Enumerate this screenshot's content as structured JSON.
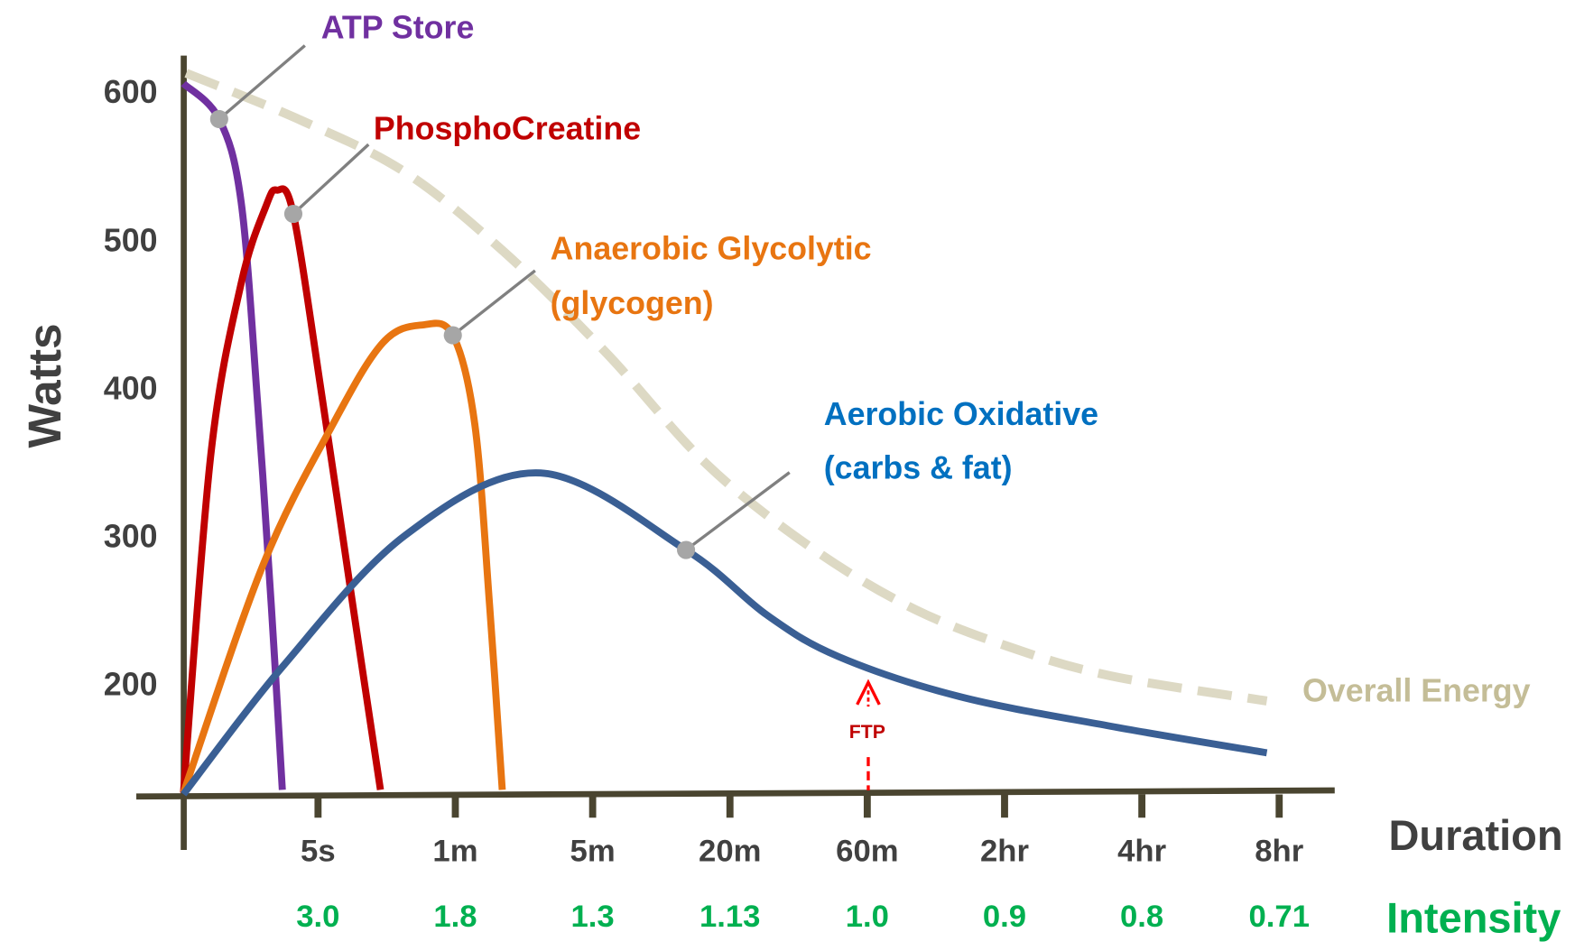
{
  "chart_data": {
    "type": "line",
    "title": "",
    "ylabel": "Watts",
    "xlabel": "Duration",
    "secondary_xlabel": "Intensity",
    "x_unit": "seconds",
    "yticks": [
      200,
      300,
      400,
      500,
      600
    ],
    "xticks": [
      {
        "label": "5s",
        "seconds": 5,
        "intensity": "3.0"
      },
      {
        "label": "1m",
        "seconds": 60,
        "intensity": "1.8"
      },
      {
        "label": "5m",
        "seconds": 300,
        "intensity": "1.3"
      },
      {
        "label": "20m",
        "seconds": 1200,
        "intensity": "1.13"
      },
      {
        "label": "60m",
        "seconds": 3600,
        "intensity": "1.0"
      },
      {
        "label": "2hr",
        "seconds": 7200,
        "intensity": "0.9"
      },
      {
        "label": "4hr",
        "seconds": 14400,
        "intensity": "0.8"
      },
      {
        "label": "8hr",
        "seconds": 28800,
        "intensity": "0.71"
      }
    ],
    "grid": false,
    "series": [
      {
        "name": "ATP Store",
        "color": "#7030a0",
        "style": "solid",
        "points": [
          [
            0.1,
            605
          ],
          [
            1.4,
            581
          ],
          [
            2.2,
            525
          ],
          [
            2.8,
            389
          ],
          [
            3.3,
            252
          ],
          [
            3.7,
            128
          ]
        ],
        "callout_at": [
          1.4,
          581
        ]
      },
      {
        "name": "PhosphoCreatine",
        "color": "#c00000",
        "style": "solid",
        "points": [
          [
            0.1,
            126
          ],
          [
            1.1,
            355
          ],
          [
            2.2,
            470
          ],
          [
            3.1,
            522
          ],
          [
            3.5,
            533
          ],
          [
            4.1,
            517
          ],
          [
            7,
            389
          ],
          [
            19,
            252
          ],
          [
            30,
            128
          ]
        ],
        "callout_at": [
          4.1,
          517
        ]
      },
      {
        "name": "Anaerobic Glycolytic (glycogen)",
        "label_lines": [
          "Anaerobic Glycolytic",
          "(glycogen)"
        ],
        "color": "#e87511",
        "style": "solid",
        "points": [
          [
            0.1,
            126
          ],
          [
            3,
            280
          ],
          [
            11,
            375
          ],
          [
            31,
            430
          ],
          [
            47,
            442
          ],
          [
            59,
            435
          ],
          [
            94,
            375
          ],
          [
            120,
            252
          ],
          [
            142,
            128
          ]
        ],
        "callout_at": [
          59,
          435
        ]
      },
      {
        "name": "Aerobic Oxidative (carbs & fat)",
        "label_lines": [
          "Aerobic Oxidative",
          "(carbs & fat)"
        ],
        "color": "#3a5f94",
        "label_color": "#0070c0",
        "style": "solid",
        "points": [
          [
            0.1,
            125
          ],
          [
            3.7,
            211
          ],
          [
            40,
            300
          ],
          [
            209,
            342
          ],
          [
            912,
            290
          ],
          [
            1848,
            246
          ],
          [
            3096,
            218
          ],
          [
            6012,
            191
          ],
          [
            12744,
            171
          ],
          [
            27504,
            153
          ]
        ],
        "callout_at": [
          912,
          290
        ]
      },
      {
        "name": "Overall Energy",
        "color": "#ddd9c4",
        "label_color": "#c4bd97",
        "style": "dashed",
        "points": [
          [
            0.2,
            612
          ],
          [
            4.4,
            580
          ],
          [
            40,
            545
          ],
          [
            146,
            491
          ],
          [
            390,
            423
          ],
          [
            1047,
            348
          ],
          [
            2568,
            293
          ],
          [
            4680,
            252
          ],
          [
            7344,
            225
          ],
          [
            12744,
            205
          ],
          [
            27504,
            188
          ]
        ]
      }
    ],
    "annotations": [
      {
        "text": "FTP",
        "at_seconds": 3600,
        "color": "#ff0000"
      }
    ],
    "colors": {
      "axis": "#4a4530",
      "tick_label": "#404040",
      "intensity": "#00b050",
      "callout": "#808080",
      "callout_dot": "#a6a6a6"
    }
  }
}
